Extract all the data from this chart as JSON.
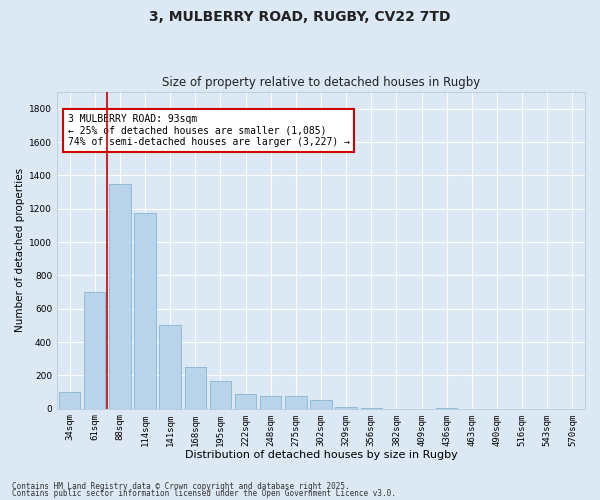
{
  "title1": "3, MULBERRY ROAD, RUGBY, CV22 7TD",
  "title2": "Size of property relative to detached houses in Rugby",
  "xlabel": "Distribution of detached houses by size in Rugby",
  "ylabel": "Number of detached properties",
  "categories": [
    "34sqm",
    "61sqm",
    "88sqm",
    "114sqm",
    "141sqm",
    "168sqm",
    "195sqm",
    "222sqm",
    "248sqm",
    "275sqm",
    "302sqm",
    "329sqm",
    "356sqm",
    "382sqm",
    "409sqm",
    "436sqm",
    "463sqm",
    "490sqm",
    "516sqm",
    "543sqm",
    "570sqm"
  ],
  "values": [
    100,
    700,
    1350,
    1175,
    500,
    250,
    165,
    90,
    75,
    75,
    50,
    10,
    5,
    0,
    0,
    5,
    0,
    0,
    0,
    0,
    0
  ],
  "bar_color": "#b8d4ea",
  "bar_edge_color": "#7aadd0",
  "vline_color": "#cc0000",
  "vline_x": 1.5,
  "annotation_text": "3 MULBERRY ROAD: 93sqm\n← 25% of detached houses are smaller (1,085)\n74% of semi-detached houses are larger (3,227) →",
  "annotation_box_facecolor": "#ffffff",
  "annotation_box_edgecolor": "#cc0000",
  "ylim": [
    0,
    1900
  ],
  "yticks": [
    0,
    200,
    400,
    600,
    800,
    1000,
    1200,
    1400,
    1600,
    1800
  ],
  "bg_color": "#dce8f4",
  "plot_bg": "#dce8f4",
  "grid_color": "#ffffff",
  "title1_fontsize": 10,
  "title2_fontsize": 8.5,
  "xlabel_fontsize": 8,
  "ylabel_fontsize": 7.5,
  "tick_fontsize": 6.5,
  "ann_fontsize": 7,
  "footer1": "Contains HM Land Registry data © Crown copyright and database right 2025.",
  "footer2": "Contains public sector information licensed under the Open Government Licence v3.0.",
  "footer_fontsize": 5.5
}
